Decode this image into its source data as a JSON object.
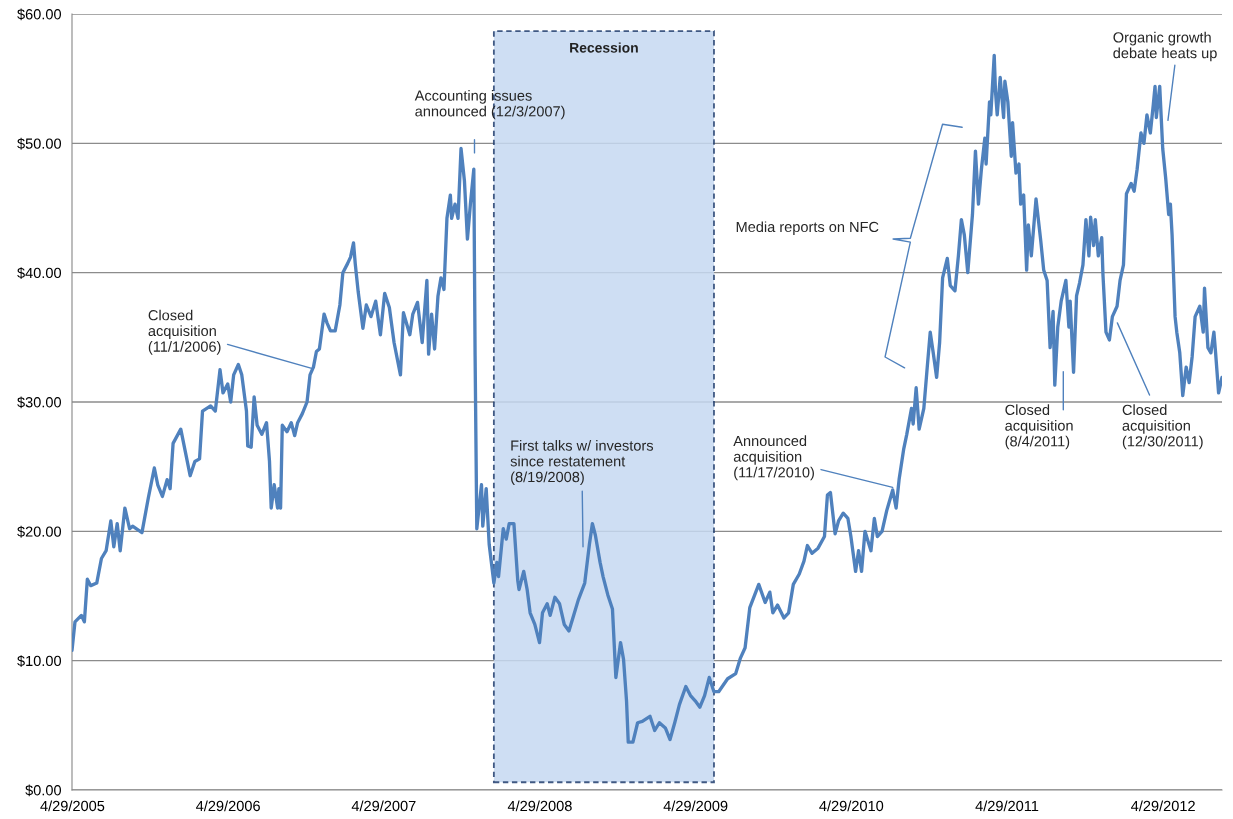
{
  "chart_data": {
    "type": "line",
    "x": [
      "2005-04-28",
      "2005-05-05",
      "2005-05-20",
      "2005-05-27",
      "2005-06-03",
      "2005-06-11",
      "2005-06-25",
      "2005-07-06",
      "2005-07-17",
      "2005-07-28",
      "2005-08-04",
      "2005-08-12",
      "2005-08-19",
      "2005-08-30",
      "2005-09-10",
      "2005-09-17",
      "2005-10-09",
      "2005-10-24",
      "2005-11-07",
      "2005-11-15",
      "2005-11-26",
      "2005-12-07",
      "2005-12-14",
      "2005-12-21",
      "2006-01-08",
      "2006-01-19",
      "2006-01-30",
      "2006-02-10",
      "2006-02-21",
      "2006-02-28",
      "2006-03-19",
      "2006-03-30",
      "2006-04-10",
      "2006-04-17",
      "2006-04-28",
      "2006-05-05",
      "2006-05-12",
      "2006-05-23",
      "2006-05-31",
      "2006-06-11",
      "2006-06-14",
      "2006-06-22",
      "2006-06-29",
      "2006-07-06",
      "2006-07-17",
      "2006-07-28",
      "2006-08-04",
      "2006-08-08",
      "2006-08-15",
      "2006-08-23",
      "2006-08-26",
      "2006-08-30",
      "2006-09-03",
      "2006-09-14",
      "2006-09-24",
      "2006-10-02",
      "2006-10-09",
      "2006-10-20",
      "2006-10-31",
      "2006-11-07",
      "2006-11-15",
      "2006-11-22",
      "2006-11-29",
      "2006-12-10",
      "2006-12-17",
      "2006-12-25",
      "2007-01-05",
      "2007-01-16",
      "2007-01-23",
      "2007-02-03",
      "2007-02-10",
      "2007-02-17",
      "2007-02-21",
      "2007-02-28",
      "2007-03-11",
      "2007-03-19",
      "2007-03-30",
      "2007-04-10",
      "2007-04-21",
      "2007-05-01",
      "2007-05-12",
      "2007-05-23",
      "2007-06-07",
      "2007-06-14",
      "2007-06-29",
      "2007-07-06",
      "2007-07-17",
      "2007-07-28",
      "2007-08-08",
      "2007-08-12",
      "2007-08-19",
      "2007-08-26",
      "2007-09-03",
      "2007-09-10",
      "2007-09-17",
      "2007-09-24",
      "2007-10-02",
      "2007-10-05",
      "2007-10-13",
      "2007-10-20",
      "2007-10-27",
      "2007-11-04",
      "2007-11-11",
      "2007-11-18",
      "2007-11-26",
      "2007-11-29",
      "2007-12-03",
      "2007-12-14",
      "2007-12-17",
      "2007-12-25",
      "2008-01-01",
      "2008-01-12",
      "2008-01-19",
      "2008-01-23",
      "2008-02-03",
      "2008-02-10",
      "2008-02-17",
      "2008-02-28",
      "2008-03-08",
      "2008-03-11",
      "2008-03-22",
      "2008-03-30",
      "2008-04-06",
      "2008-04-17",
      "2008-04-28",
      "2008-05-05",
      "2008-05-16",
      "2008-05-23",
      "2008-06-03",
      "2008-06-14",
      "2008-06-25",
      "2008-07-06",
      "2008-07-17",
      "2008-07-28",
      "2008-08-12",
      "2008-08-23",
      "2008-08-30",
      "2008-09-06",
      "2008-09-17",
      "2008-09-24",
      "2008-10-05",
      "2008-10-16",
      "2008-10-24",
      "2008-11-04",
      "2008-11-11",
      "2008-11-18",
      "2008-11-22",
      "2008-12-03",
      "2008-12-14",
      "2008-12-25",
      "2009-01-12",
      "2009-01-23",
      "2009-02-03",
      "2009-02-17",
      "2009-02-28",
      "2009-03-11",
      "2009-03-22",
      "2009-04-06",
      "2009-04-17",
      "2009-04-28",
      "2009-05-09",
      "2009-05-20",
      "2009-05-31",
      "2009-06-11",
      "2009-06-22",
      "2009-07-13",
      "2009-08-01",
      "2009-08-12",
      "2009-08-23",
      "2009-09-03",
      "2009-09-17",
      "2009-09-24",
      "2009-10-09",
      "2009-10-20",
      "2009-10-27",
      "2009-11-07",
      "2009-11-22",
      "2009-12-03",
      "2009-12-14",
      "2009-12-28",
      "2010-01-08",
      "2010-01-16",
      "2010-01-27",
      "2010-02-10",
      "2010-02-25",
      "2010-03-04",
      "2010-03-11",
      "2010-03-22",
      "2010-03-30",
      "2010-04-10",
      "2010-04-21",
      "2010-04-28",
      "2010-05-09",
      "2010-05-16",
      "2010-05-23",
      "2010-05-31",
      "2010-06-14",
      "2010-06-22",
      "2010-06-29",
      "2010-07-10",
      "2010-07-21",
      "2010-08-04",
      "2010-08-12",
      "2010-08-19",
      "2010-08-30",
      "2010-09-06",
      "2010-09-17",
      "2010-09-21",
      "2010-09-28",
      "2010-10-05",
      "2010-10-16",
      "2010-10-24",
      "2010-10-31",
      "2010-11-07",
      "2010-11-15",
      "2010-11-22",
      "2010-11-29",
      "2010-12-10",
      "2010-12-17",
      "2010-12-28",
      "2011-01-05",
      "2011-01-12",
      "2011-01-19",
      "2011-01-27",
      "2011-02-07",
      "2011-02-14",
      "2011-02-21",
      "2011-02-28",
      "2011-03-08",
      "2011-03-11",
      "2011-03-19",
      "2011-03-22",
      "2011-03-30",
      "2011-04-02",
      "2011-04-06",
      "2011-04-13",
      "2011-04-21",
      "2011-04-24",
      "2011-05-01",
      "2011-05-09",
      "2011-05-12",
      "2011-05-20",
      "2011-05-27",
      "2011-05-31",
      "2011-06-07",
      "2011-06-14",
      "2011-06-18",
      "2011-06-25",
      "2011-07-06",
      "2011-07-17",
      "2011-07-24",
      "2011-08-01",
      "2011-08-08",
      "2011-08-15",
      "2011-08-19",
      "2011-08-26",
      "2011-09-03",
      "2011-09-14",
      "2011-09-21",
      "2011-09-24",
      "2011-10-02",
      "2011-10-09",
      "2011-10-16",
      "2011-10-24",
      "2011-10-31",
      "2011-11-07",
      "2011-11-11",
      "2011-11-18",
      "2011-11-22",
      "2011-11-29",
      "2011-12-07",
      "2011-12-10",
      "2011-12-17",
      "2011-12-25",
      "2012-01-01",
      "2012-01-12",
      "2012-01-19",
      "2012-01-27",
      "2012-02-03",
      "2012-02-14",
      "2012-02-21",
      "2012-02-28",
      "2012-03-08",
      "2012-03-15",
      "2012-03-22",
      "2012-03-30",
      "2012-04-06",
      "2012-04-10",
      "2012-04-13",
      "2012-04-21",
      "2012-04-28",
      "2012-05-05",
      "2012-05-12",
      "2012-05-16",
      "2012-05-20",
      "2012-05-27",
      "2012-05-31",
      "2012-06-07",
      "2012-06-14",
      "2012-06-22",
      "2012-06-29",
      "2012-07-06",
      "2012-07-13",
      "2012-07-24",
      "2012-08-01",
      "2012-08-04",
      "2012-08-12",
      "2012-08-19",
      "2012-08-26",
      "2012-08-30",
      "2012-09-06",
      "2012-09-14"
    ],
    "series": [
      {
        "color": "#4f81bd",
        "values": [
          10.8,
          13.0,
          13.5,
          13.0,
          16.3,
          15.8,
          16.0,
          17.9,
          18.5,
          20.8,
          18.8,
          20.6,
          18.5,
          21.8,
          20.2,
          20.4,
          19.9,
          22.6,
          24.9,
          23.6,
          22.7,
          24.0,
          23.3,
          26.8,
          27.9,
          26.1,
          24.3,
          25.4,
          25.6,
          29.3,
          29.7,
          29.3,
          32.5,
          30.7,
          31.4,
          30.0,
          32.1,
          32.9,
          32.1,
          29.3,
          26.6,
          26.5,
          30.4,
          28.2,
          27.5,
          28.4,
          25.4,
          21.8,
          23.6,
          21.8,
          23.3,
          21.8,
          28.2,
          27.7,
          28.4,
          27.4,
          28.4,
          29.1,
          30.0,
          32.1,
          32.7,
          33.9,
          34.1,
          36.8,
          36.1,
          35.5,
          35.5,
          37.5,
          40.0,
          40.7,
          41.2,
          42.3,
          40.7,
          38.5,
          35.7,
          37.5,
          36.6,
          37.8,
          35.2,
          38.4,
          37.3,
          34.6,
          32.1,
          36.9,
          35.2,
          36.8,
          37.7,
          34.6,
          39.4,
          33.7,
          36.8,
          34.1,
          38.2,
          39.6,
          38.7,
          44.2,
          46.0,
          44.2,
          45.3,
          44.2,
          49.6,
          47.1,
          42.6,
          45.3,
          48.0,
          33.6,
          20.2,
          23.6,
          20.4,
          23.3,
          19.0,
          16.0,
          17.6,
          16.5,
          20.2,
          19.4,
          20.6,
          20.6,
          16.2,
          15.5,
          16.9,
          15.5,
          13.7,
          12.8,
          11.4,
          13.7,
          14.4,
          13.5,
          14.9,
          14.4,
          12.8,
          12.3,
          13.5,
          14.7,
          16.0,
          19.0,
          20.6,
          19.7,
          17.6,
          16.5,
          15.1,
          14.0,
          8.7,
          11.4,
          10.1,
          6.9,
          3.7,
          3.7,
          5.2,
          5.3,
          5.7,
          4.6,
          5.2,
          4.8,
          3.9,
          5.2,
          6.6,
          8.0,
          7.3,
          6.9,
          6.4,
          7.3,
          8.7,
          7.6,
          7.6,
          8.6,
          9.0,
          10.2,
          11.0,
          14.1,
          15.3,
          15.9,
          14.5,
          15.3,
          13.7,
          14.3,
          13.3,
          13.7,
          15.9,
          16.7,
          17.7,
          18.9,
          18.3,
          18.7,
          19.6,
          22.8,
          23.0,
          19.8,
          20.8,
          21.4,
          21.0,
          19.6,
          16.9,
          18.5,
          16.9,
          20.0,
          18.5,
          21.0,
          19.6,
          20.0,
          21.6,
          23.2,
          21.8,
          24.0,
          26.4,
          27.5,
          29.5,
          28.3,
          31.1,
          27.9,
          29.5,
          32.7,
          35.4,
          33.8,
          31.9,
          34.6,
          39.6,
          41.1,
          39.0,
          38.6,
          41.3,
          44.1,
          42.9,
          40.0,
          44.5,
          49.4,
          45.3,
          48.0,
          50.4,
          48.4,
          53.2,
          52.2,
          56.8,
          54.0,
          52.2,
          55.1,
          52.0,
          54.8,
          53.2,
          49.0,
          51.6,
          47.7,
          48.4,
          45.3,
          46.0,
          40.2,
          43.7,
          41.3,
          45.7,
          42.5,
          40.2,
          39.4,
          34.2,
          37.0,
          31.3,
          35.8,
          37.8,
          39.4,
          35.8,
          37.8,
          32.3,
          38.2,
          39.2,
          40.6,
          44.1,
          41.3,
          44.3,
          42.1,
          44.1,
          41.3,
          42.7,
          39.8,
          35.4,
          34.8,
          36.6,
          37.4,
          39.4,
          40.6,
          46.1,
          46.9,
          46.3,
          48.0,
          50.8,
          50.0,
          52.2,
          50.8,
          53.0,
          54.4,
          52.0,
          54.4,
          49.6,
          47.3,
          44.5,
          45.3,
          42.9,
          36.6,
          35.4,
          33.8,
          30.5,
          32.7,
          31.5,
          33.5,
          36.6,
          37.4,
          35.4,
          38.8,
          34.2,
          33.8,
          35.4,
          33.8,
          30.7,
          31.9
        ]
      }
    ],
    "xlim": [
      "2005-04-28",
      "2012-09-14"
    ],
    "xticks": [
      {
        "value": "2005-04-29",
        "label": "4/29/2005"
      },
      {
        "value": "2006-04-29",
        "label": "4/29/2006"
      },
      {
        "value": "2007-04-29",
        "label": "4/29/2007"
      },
      {
        "value": "2008-04-29",
        "label": "4/29/2008"
      },
      {
        "value": "2009-04-29",
        "label": "4/29/2009"
      },
      {
        "value": "2010-04-29",
        "label": "4/29/2010"
      },
      {
        "value": "2011-04-29",
        "label": "4/29/2011"
      },
      {
        "value": "2012-04-29",
        "label": "4/29/2012"
      }
    ],
    "ylim": [
      0,
      60
    ],
    "yticks": [
      {
        "value": 0,
        "label": "$0.00"
      },
      {
        "value": 10,
        "label": "$10.00"
      },
      {
        "value": 20,
        "label": "$20.00"
      },
      {
        "value": 30,
        "label": "$30.00"
      },
      {
        "value": 40,
        "label": "$40.00"
      },
      {
        "value": 50,
        "label": "$50.00"
      },
      {
        "value": 60,
        "label": "$60.00"
      }
    ],
    "grid": "y",
    "bands": [
      {
        "axis": "x",
        "from": "2008-01-12",
        "to": "2009-06-11",
        "label": "Recession",
        "color": "#c6d9f1"
      }
    ],
    "annotations": [
      {
        "text": "Closed\nacquisition\n(11/1/2006)",
        "x": "2006-11-11",
        "y": 32.6
      },
      "Accounting issues\nannounced (12/3/2007)",
      {
        "text": "First talks w/ investors\nsince restatement\n(8/19/2008)",
        "x": "2008-08-08",
        "y": 18.8
      },
      {
        "text": "Announced\nacquisition\n(11/17/2010)",
        "x": "2010-08-04",
        "y": 23.4
      },
      "Media reports on NFC",
      "Closed\nacquisition\n(8/4/2011)",
      "Closed\nacquisition\n(12/30/2011)",
      "Organic growth\ndebate heats up"
    ]
  }
}
